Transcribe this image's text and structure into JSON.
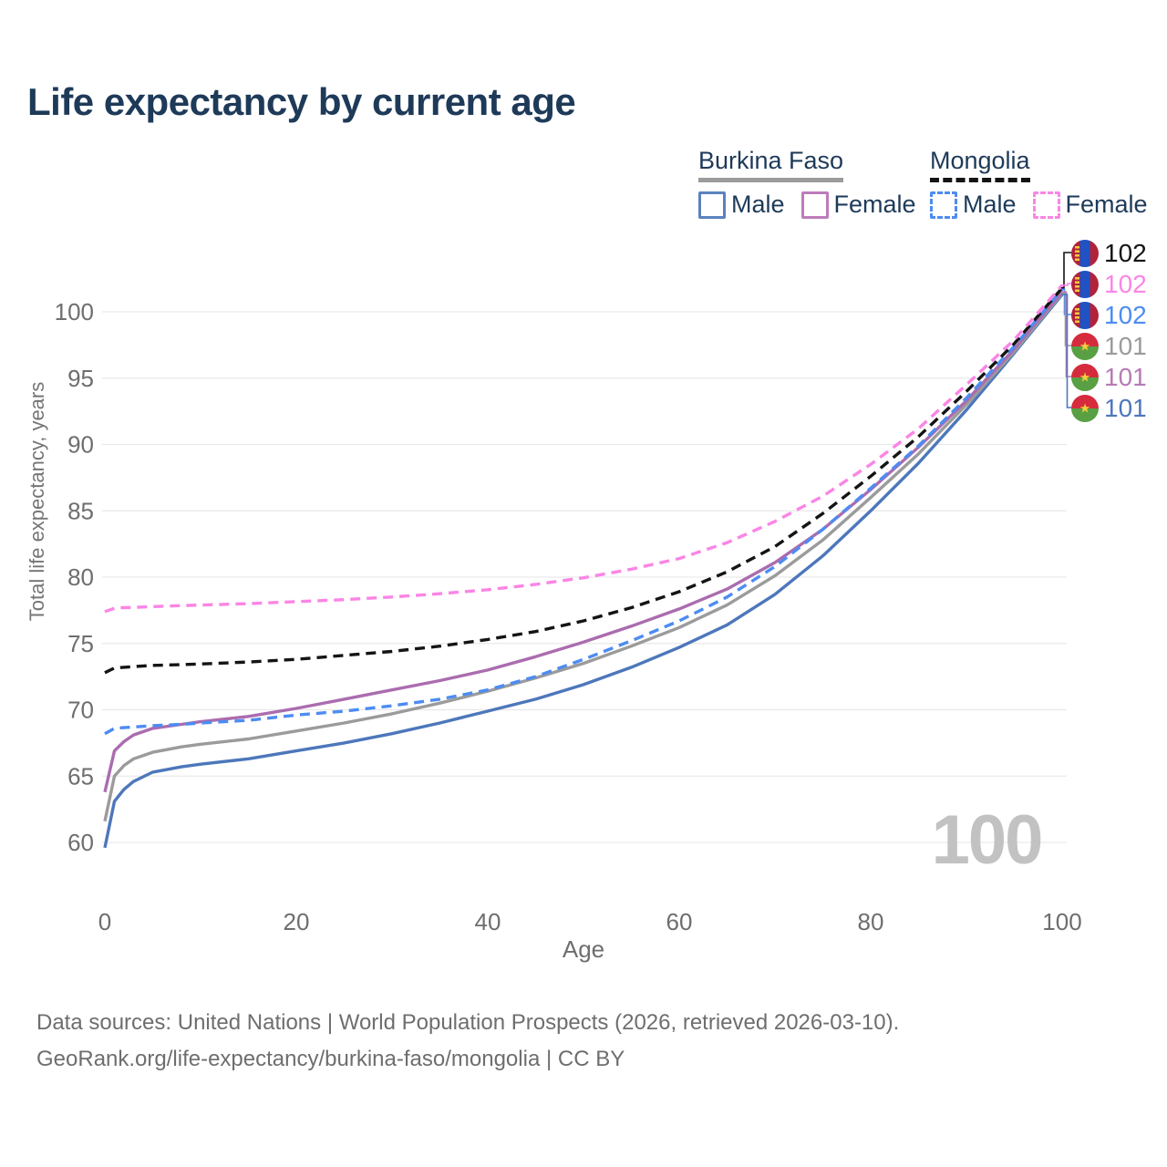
{
  "title": "Life expectancy by current age",
  "legend": {
    "groups": [
      {
        "label": "Burkina Faso",
        "line_style": "solid",
        "underline_color": "#9b9b9b",
        "items": [
          {
            "label": "Male",
            "color": "#5b82c0"
          },
          {
            "label": "Female",
            "color": "#bd7cbb"
          }
        ]
      },
      {
        "label": "Mongolia",
        "line_style": "dashed",
        "underline_color": "#141414",
        "items": [
          {
            "label": "Male",
            "color": "#4d8cf2"
          },
          {
            "label": "Female",
            "color": "#fb85e5"
          }
        ]
      }
    ]
  },
  "end_labels": [
    {
      "value": "102",
      "color": "#141414",
      "flag": "mongolia"
    },
    {
      "value": "102",
      "color": "#fb85e5",
      "flag": "mongolia"
    },
    {
      "value": "102",
      "color": "#4d8cf2",
      "flag": "mongolia"
    },
    {
      "value": "101",
      "color": "#9b9b9b",
      "flag": "burkina-faso"
    },
    {
      "value": "101",
      "color": "#b57ab5",
      "flag": "burkina-faso"
    },
    {
      "value": "101",
      "color": "#4d77bb",
      "flag": "burkina-faso"
    }
  ],
  "watermark": "100",
  "footer": {
    "line1": "Data sources: United Nations | World Population Prospects (2026, retrieved 2026-03-10).",
    "line2": "GeoRank.org/life-expectancy/burkina-faso/mongolia | CC BY"
  },
  "chart_data": {
    "type": "line",
    "title": "Life expectancy by current age",
    "xlabel": "Age",
    "ylabel": "Total life expectancy, years",
    "xlim": [
      0,
      100
    ],
    "ylim": [
      58.5,
      103
    ],
    "x_ticks": [
      0,
      20,
      40,
      60,
      80,
      100
    ],
    "y_ticks": [
      60,
      65,
      70,
      75,
      80,
      85,
      90,
      95,
      100
    ],
    "grid": "horizontal",
    "legend_position": "top-right",
    "x": [
      0,
      1,
      2,
      3,
      5,
      8,
      10,
      15,
      20,
      25,
      30,
      35,
      40,
      45,
      50,
      55,
      60,
      65,
      70,
      75,
      80,
      85,
      90,
      95,
      100
    ],
    "series": [
      {
        "name": "Burkina Faso Male",
        "color": "#4d77bb",
        "dash": "solid",
        "values": [
          59.6,
          63.1,
          64.0,
          64.6,
          65.3,
          65.7,
          65.9,
          66.3,
          66.9,
          67.5,
          68.2,
          69.0,
          69.9,
          70.8,
          71.9,
          73.2,
          74.7,
          76.4,
          78.7,
          81.6,
          85.0,
          88.6,
          92.6,
          96.9,
          101.3
        ]
      },
      {
        "name": "Burkina Faso",
        "color": "#9b9b9b",
        "dash": "solid",
        "values": [
          61.6,
          65.0,
          65.8,
          66.3,
          66.8,
          67.2,
          67.4,
          67.8,
          68.4,
          69.0,
          69.7,
          70.5,
          71.4,
          72.4,
          73.5,
          74.8,
          76.2,
          77.9,
          80.1,
          82.8,
          86.0,
          89.3,
          93.0,
          97.0,
          101.4
        ]
      },
      {
        "name": "Burkina Faso Female",
        "color": "#ab6caf",
        "dash": "solid",
        "values": [
          63.8,
          66.9,
          67.6,
          68.1,
          68.6,
          68.9,
          69.1,
          69.5,
          70.1,
          70.8,
          71.5,
          72.2,
          73.0,
          74.0,
          75.1,
          76.3,
          77.6,
          79.1,
          81.1,
          83.6,
          86.6,
          89.8,
          93.3,
          97.2,
          101.5
        ]
      },
      {
        "name": "Mongolia Male",
        "color": "#4d8cf2",
        "dash": "dashed",
        "values": [
          68.2,
          68.6,
          68.65,
          68.7,
          68.8,
          68.9,
          69.0,
          69.2,
          69.6,
          69.9,
          70.3,
          70.8,
          71.5,
          72.5,
          73.8,
          75.2,
          76.7,
          78.5,
          80.8,
          83.6,
          86.7,
          89.9,
          93.5,
          97.4,
          101.7
        ]
      },
      {
        "name": "Mongolia",
        "color": "#141414",
        "dash": "dashed",
        "values": [
          72.8,
          73.15,
          73.2,
          73.25,
          73.35,
          73.4,
          73.45,
          73.6,
          73.8,
          74.1,
          74.4,
          74.8,
          75.3,
          75.9,
          76.7,
          77.7,
          78.9,
          80.4,
          82.3,
          84.8,
          87.6,
          90.6,
          94.0,
          97.6,
          101.8
        ]
      },
      {
        "name": "Mongolia Female",
        "color": "#fb85e5",
        "dash": "dashed",
        "values": [
          77.4,
          77.65,
          77.7,
          77.72,
          77.78,
          77.85,
          77.9,
          78.0,
          78.15,
          78.3,
          78.5,
          78.75,
          79.05,
          79.45,
          79.95,
          80.6,
          81.4,
          82.6,
          84.2,
          86.1,
          88.5,
          91.2,
          94.5,
          97.9,
          102.0
        ]
      }
    ]
  }
}
